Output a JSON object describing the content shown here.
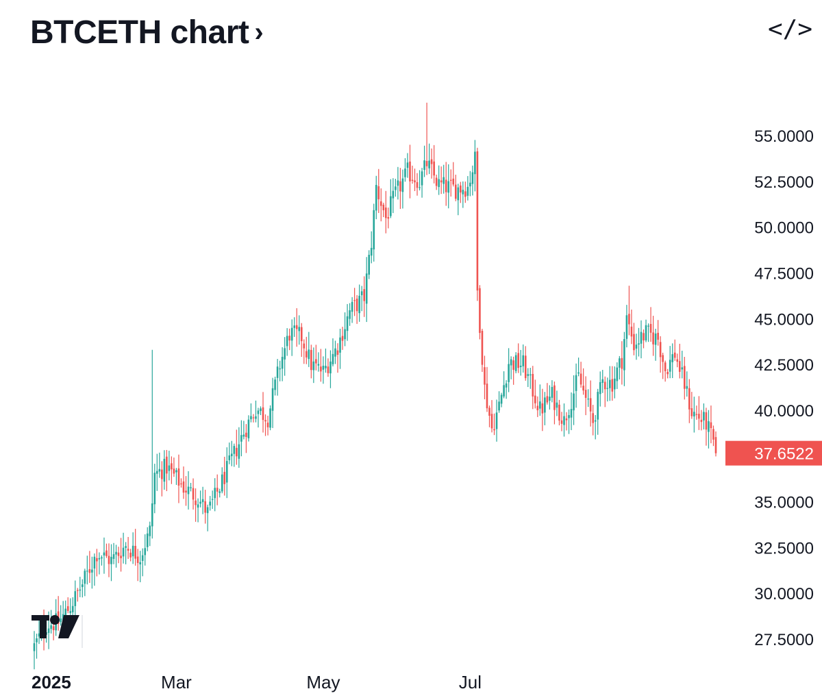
{
  "header": {
    "title": "BTCETH chart",
    "chevron": "›",
    "embed_icon": "</>",
    "embed_icon_name": "code-embed-icon"
  },
  "logo": {
    "text": "TV",
    "name": "tradingview-logo"
  },
  "colors": {
    "up": "#26a69a",
    "down": "#ef5350",
    "text": "#131722",
    "last_bg": "#ef5350"
  },
  "chart_data": {
    "type": "candlestick",
    "symbol": "BTCETH",
    "y_ticks": [
      "55.0000",
      "52.5000",
      "50.0000",
      "47.5000",
      "45.0000",
      "42.5000",
      "40.0000",
      "35.0000",
      "32.5000",
      "30.0000",
      "27.5000"
    ],
    "y_tick_values": [
      55,
      52.5,
      50,
      47.5,
      45,
      42.5,
      40,
      35,
      32.5,
      30,
      27.5
    ],
    "x_ticks": [
      "2025",
      "Mar",
      "May",
      "Jul"
    ],
    "x_tick_day_index": [
      0,
      59,
      120,
      181
    ],
    "ylim": [
      26.5,
      57.0
    ],
    "last_price": "37.6522",
    "last_price_value": 37.6522,
    "anchors": [
      {
        "day": 0,
        "close": 27.1
      },
      {
        "day": 5,
        "close": 28.3
      },
      {
        "day": 10,
        "close": 28.4
      },
      {
        "day": 15,
        "close": 29.3
      },
      {
        "day": 20,
        "close": 30.5
      },
      {
        "day": 26,
        "close": 32.2
      },
      {
        "day": 32,
        "close": 31.8
      },
      {
        "day": 38,
        "close": 32.6
      },
      {
        "day": 44,
        "close": 32.0
      },
      {
        "day": 48,
        "close": 33.4
      },
      {
        "day": 50,
        "close": 36.5
      },
      {
        "day": 55,
        "close": 36.9
      },
      {
        "day": 62,
        "close": 35.8
      },
      {
        "day": 68,
        "close": 35.2
      },
      {
        "day": 72,
        "close": 34.4
      },
      {
        "day": 77,
        "close": 35.8
      },
      {
        "day": 82,
        "close": 37.3
      },
      {
        "day": 87,
        "close": 38.8
      },
      {
        "day": 92,
        "close": 40.1
      },
      {
        "day": 97,
        "close": 39.6
      },
      {
        "day": 102,
        "close": 42.5
      },
      {
        "day": 106,
        "close": 44.2
      },
      {
        "day": 111,
        "close": 44.0
      },
      {
        "day": 115,
        "close": 42.5
      },
      {
        "day": 120,
        "close": 42.1
      },
      {
        "day": 126,
        "close": 43.5
      },
      {
        "day": 131,
        "close": 45.4
      },
      {
        "day": 137,
        "close": 46.2
      },
      {
        "day": 140,
        "close": 49.2
      },
      {
        "day": 142,
        "close": 52.2
      },
      {
        "day": 146,
        "close": 50.5
      },
      {
        "day": 150,
        "close": 51.8
      },
      {
        "day": 155,
        "close": 53.0
      },
      {
        "day": 160,
        "close": 52.5
      },
      {
        "day": 163,
        "close": 53.5
      },
      {
        "day": 168,
        "close": 52.3
      },
      {
        "day": 175,
        "close": 52.1
      },
      {
        "day": 180,
        "close": 52.2
      },
      {
        "day": 183,
        "close": 53.7
      },
      {
        "day": 184,
        "close": 46.5
      },
      {
        "day": 187,
        "close": 41.2
      },
      {
        "day": 190,
        "close": 39.0
      },
      {
        "day": 193,
        "close": 40.2
      },
      {
        "day": 197,
        "close": 42.6
      },
      {
        "day": 203,
        "close": 42.5
      },
      {
        "day": 210,
        "close": 40.0
      },
      {
        "day": 215,
        "close": 40.8
      },
      {
        "day": 220,
        "close": 39.4
      },
      {
        "day": 226,
        "close": 41.8
      },
      {
        "day": 232,
        "close": 39.4
      },
      {
        "day": 236,
        "close": 41.6
      },
      {
        "day": 240,
        "close": 41.5
      },
      {
        "day": 244,
        "close": 42.8
      },
      {
        "day": 246,
        "close": 45.0
      },
      {
        "day": 249,
        "close": 43.6
      },
      {
        "day": 254,
        "close": 44.2
      },
      {
        "day": 259,
        "close": 43.9
      },
      {
        "day": 262,
        "close": 42.2
      },
      {
        "day": 266,
        "close": 43.1
      },
      {
        "day": 270,
        "close": 41.4
      },
      {
        "day": 273,
        "close": 39.9
      },
      {
        "day": 276,
        "close": 39.6
      },
      {
        "day": 279,
        "close": 39.3
      },
      {
        "day": 282,
        "close": 38.2
      },
      {
        "day": 283,
        "close": 37.65
      }
    ],
    "spikes": [
      {
        "day": 49,
        "high": 43.3
      },
      {
        "day": 163,
        "high": 56.8
      },
      {
        "day": 247,
        "high": 46.8
      }
    ]
  }
}
